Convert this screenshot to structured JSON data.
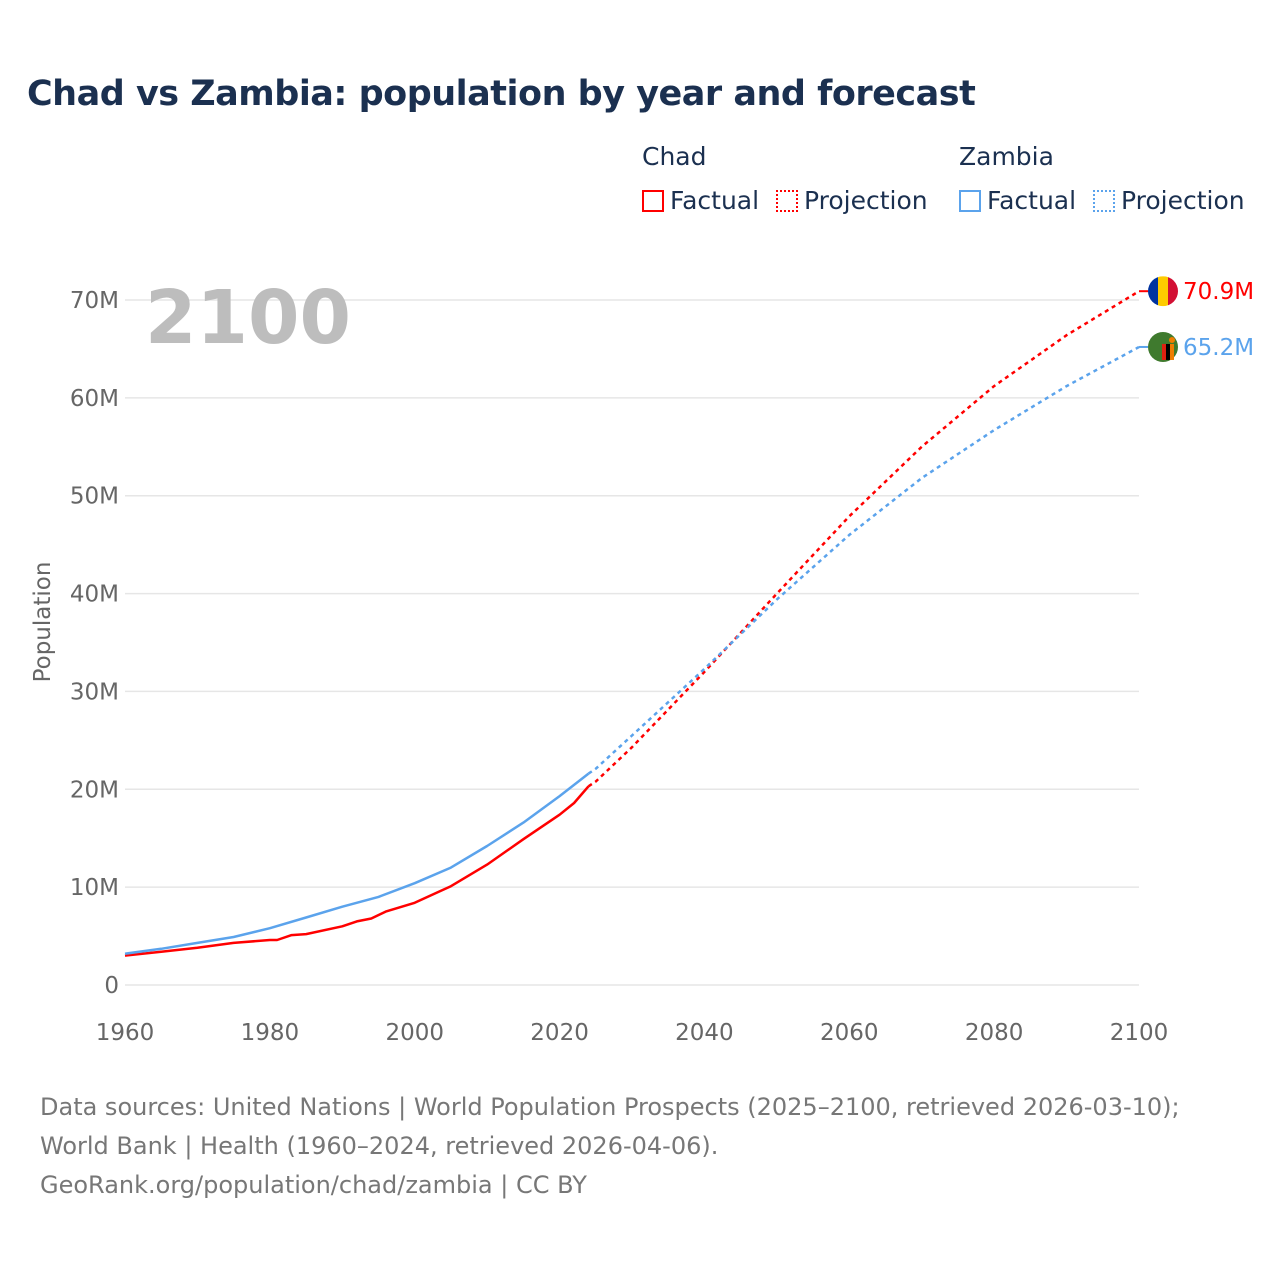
{
  "title": "Chad vs Zambia: population by year and forecast",
  "legend": {
    "groups": [
      {
        "name": "Chad",
        "color": "#ff0000",
        "factual": "Factual",
        "projection": "Projection"
      },
      {
        "name": "Zambia",
        "color": "#5ba3ec",
        "factual": "Factual",
        "projection": "Projection"
      }
    ]
  },
  "year_label": "2100",
  "footer": {
    "sources": "Data sources: United Nations | World Population Prospects (2025–2100, retrieved 2026-03-10); World Bank | Health (1960–2024, retrieved 2026-04-06).",
    "credit": "GeoRank.org/population/chad/zambia | CC BY"
  },
  "chart_data": {
    "type": "line",
    "title": "Chad vs Zambia: population by year and forecast",
    "xlabel": "",
    "ylabel": "Population",
    "xlim": [
      1960,
      2100
    ],
    "ylim": [
      0,
      70
    ],
    "unit": "millions",
    "x_ticks": [
      "1960",
      "1980",
      "2000",
      "2020",
      "2040",
      "2060",
      "2080",
      "2100"
    ],
    "y_ticks": [
      "0",
      "10M",
      "20M",
      "30M",
      "40M",
      "50M",
      "60M",
      "70M"
    ],
    "grid": true,
    "legend_position": "top-right",
    "series": [
      {
        "name": "Chad",
        "kind": "Factual",
        "color": "#ff0000",
        "x": [
          1960,
          1965,
          1970,
          1975,
          1980,
          1981,
          1983,
          1985,
          1990,
          1992,
          1994,
          1996,
          2000,
          2005,
          2010,
          2015,
          2020,
          2022,
          2024
        ],
        "y": [
          3.0,
          3.4,
          3.8,
          4.3,
          4.6,
          4.6,
          5.1,
          5.2,
          6.0,
          6.5,
          6.8,
          7.5,
          8.4,
          10.1,
          12.3,
          14.9,
          17.4,
          18.6,
          20.3
        ]
      },
      {
        "name": "Chad",
        "kind": "Projection",
        "color": "#ff0000",
        "x": [
          2024,
          2025,
          2030,
          2040,
          2050,
          2060,
          2070,
          2080,
          2090,
          2100
        ],
        "y": [
          20.3,
          20.8,
          24.3,
          32.0,
          40.0,
          47.9,
          55.0,
          61.2,
          66.4,
          70.9
        ]
      },
      {
        "name": "Zambia",
        "kind": "Factual",
        "color": "#5ba3ec",
        "x": [
          1960,
          1965,
          1970,
          1975,
          1980,
          1985,
          1990,
          1995,
          2000,
          2005,
          2010,
          2015,
          2020,
          2024
        ],
        "y": [
          3.2,
          3.7,
          4.3,
          4.9,
          5.8,
          6.9,
          8.0,
          9.0,
          10.4,
          12.0,
          14.2,
          16.6,
          19.3,
          21.6
        ]
      },
      {
        "name": "Zambia",
        "kind": "Projection",
        "color": "#5ba3ec",
        "x": [
          2024,
          2025,
          2030,
          2040,
          2050,
          2060,
          2070,
          2080,
          2090,
          2100
        ],
        "y": [
          21.6,
          22.1,
          25.5,
          32.3,
          39.4,
          46.0,
          51.8,
          56.7,
          61.2,
          65.2
        ]
      }
    ],
    "end_labels": [
      {
        "series": "Chad",
        "text": "70.9M",
        "value": 70.9
      },
      {
        "series": "Zambia",
        "text": "65.2M",
        "value": 65.2
      }
    ]
  }
}
